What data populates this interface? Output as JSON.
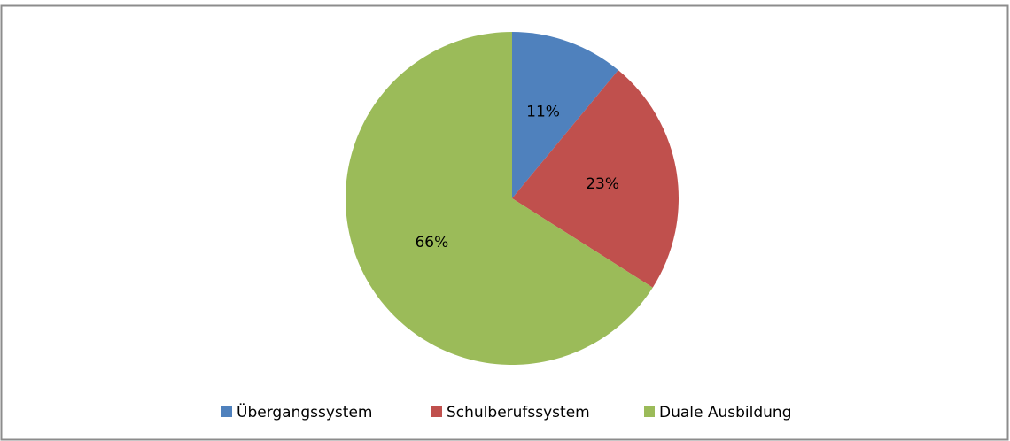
{
  "chart_data": {
    "type": "pie",
    "categories": [
      "Übergangssystem",
      "Schulberufssystem",
      "Duale Ausbildung"
    ],
    "values": [
      11,
      23,
      66
    ],
    "value_labels": [
      "11%",
      "23%",
      "66%"
    ],
    "colors": [
      "#4f81bd",
      "#c0504d",
      "#9bbb59"
    ],
    "legend": "bottom"
  }
}
